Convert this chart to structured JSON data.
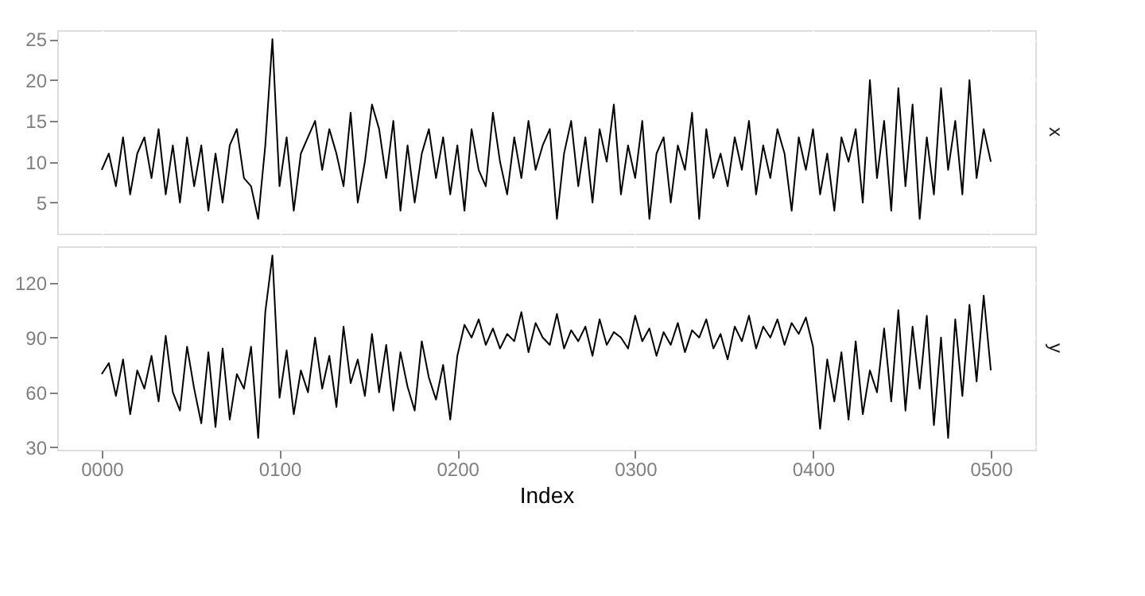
{
  "chart_data": [
    {
      "type": "line",
      "title": "x",
      "tick_labels": "y",
      "grid": true,
      "marker": "none",
      "line_style": "solid",
      "legend": false,
      "xlim": [
        -25,
        525
      ],
      "xticks": [
        0,
        100,
        200,
        300,
        400,
        500
      ],
      "ylim": [
        1.2,
        26.1
      ],
      "yticks": [
        5,
        10,
        15,
        20,
        25
      ],
      "x": [
        0,
        4,
        8,
        12,
        16,
        20,
        24,
        28,
        32,
        36,
        40,
        44,
        48,
        52,
        56,
        60,
        64,
        68,
        72,
        76,
        80,
        84,
        88,
        92,
        96,
        100,
        104,
        108,
        112,
        116,
        120,
        124,
        128,
        132,
        136,
        140,
        144,
        148,
        152,
        156,
        160,
        164,
        168,
        172,
        176,
        180,
        184,
        188,
        192,
        196,
        200,
        204,
        208,
        212,
        216,
        220,
        224,
        228,
        232,
        236,
        240,
        244,
        248,
        252,
        256,
        260,
        264,
        268,
        272,
        276,
        280,
        284,
        288,
        292,
        296,
        300,
        304,
        308,
        312,
        316,
        320,
        324,
        328,
        332,
        336,
        340,
        344,
        348,
        352,
        356,
        360,
        364,
        368,
        372,
        376,
        380,
        384,
        388,
        392,
        396,
        400,
        404,
        408,
        412,
        416,
        420,
        424,
        428,
        432,
        436,
        440,
        444,
        448,
        452,
        456,
        460,
        464,
        468,
        472,
        476,
        480,
        484,
        488,
        492,
        496,
        500
      ],
      "series": [
        {
          "color": "#000000",
          "values": [
            9,
            11,
            7,
            13,
            6,
            11,
            13,
            8,
            14,
            6,
            12,
            5,
            13,
            7,
            12,
            4,
            11,
            5,
            12,
            14,
            8,
            7,
            3,
            12,
            25,
            7,
            13,
            4,
            11,
            13,
            15,
            9,
            14,
            11,
            7,
            16,
            5,
            10,
            17,
            14,
            8,
            15,
            4,
            12,
            5,
            11,
            14,
            8,
            13,
            6,
            12,
            4,
            14,
            9,
            7,
            16,
            10,
            6,
            13,
            8,
            15,
            9,
            12,
            14,
            3,
            11,
            15,
            7,
            13,
            5,
            14,
            10,
            17,
            6,
            12,
            8,
            15,
            3,
            11,
            13,
            5,
            12,
            9,
            16,
            3,
            14,
            8,
            11,
            7,
            13,
            9,
            15,
            6,
            12,
            8,
            14,
            11,
            4,
            13,
            9,
            14,
            6,
            11,
            4,
            13,
            10,
            14,
            5,
            20,
            8,
            15,
            4,
            19,
            7,
            17,
            3,
            13,
            6,
            19,
            9,
            15,
            6,
            20,
            8,
            14,
            10
          ]
        }
      ]
    },
    {
      "type": "line",
      "title": "y",
      "xlabel": "Index",
      "grid": true,
      "marker": "none",
      "line_style": "solid",
      "legend": false,
      "xlim": [
        -25,
        525
      ],
      "xticks": [
        {
          "value": 0,
          "label": "0000"
        },
        {
          "value": 100,
          "label": "0100"
        },
        {
          "value": 200,
          "label": "0200"
        },
        {
          "value": 300,
          "label": "0300"
        },
        {
          "value": 400,
          "label": "0400"
        },
        {
          "value": 500,
          "label": "0500"
        }
      ],
      "ylim": [
        28.5,
        140
      ],
      "yticks": [
        30,
        60,
        90,
        120
      ],
      "x": [
        0,
        4,
        8,
        12,
        16,
        20,
        24,
        28,
        32,
        36,
        40,
        44,
        48,
        52,
        56,
        60,
        64,
        68,
        72,
        76,
        80,
        84,
        88,
        92,
        96,
        100,
        104,
        108,
        112,
        116,
        120,
        124,
        128,
        132,
        136,
        140,
        144,
        148,
        152,
        156,
        160,
        164,
        168,
        172,
        176,
        180,
        184,
        188,
        192,
        196,
        200,
        204,
        208,
        212,
        216,
        220,
        224,
        228,
        232,
        236,
        240,
        244,
        248,
        252,
        256,
        260,
        264,
        268,
        272,
        276,
        280,
        284,
        288,
        292,
        296,
        300,
        304,
        308,
        312,
        316,
        320,
        324,
        328,
        332,
        336,
        340,
        344,
        348,
        352,
        356,
        360,
        364,
        368,
        372,
        376,
        380,
        384,
        388,
        392,
        396,
        400,
        404,
        408,
        412,
        416,
        420,
        424,
        428,
        432,
        436,
        440,
        444,
        448,
        452,
        456,
        460,
        464,
        468,
        472,
        476,
        480,
        484,
        488,
        492,
        496,
        500
      ],
      "series": [
        {
          "color": "#000000",
          "values": [
            70,
            76,
            58,
            78,
            48,
            72,
            62,
            80,
            55,
            91,
            60,
            50,
            85,
            62,
            43,
            82,
            41,
            84,
            45,
            70,
            62,
            85,
            35,
            104,
            135,
            57,
            83,
            48,
            72,
            60,
            90,
            62,
            80,
            52,
            96,
            65,
            78,
            58,
            92,
            60,
            86,
            50,
            82,
            63,
            50,
            88,
            68,
            56,
            75,
            45,
            80,
            97,
            90,
            100,
            86,
            95,
            84,
            92,
            88,
            104,
            82,
            98,
            90,
            86,
            103,
            84,
            94,
            88,
            96,
            80,
            100,
            86,
            93,
            90,
            84,
            102,
            88,
            95,
            80,
            93,
            86,
            98,
            82,
            94,
            90,
            100,
            84,
            92,
            78,
            96,
            88,
            102,
            84,
            96,
            90,
            100,
            86,
            98,
            92,
            101,
            85,
            40,
            78,
            55,
            82,
            45,
            88,
            48,
            72,
            60,
            95,
            55,
            105,
            50,
            96,
            62,
            102,
            42,
            90,
            35,
            100,
            58,
            108,
            66,
            113,
            72
          ]
        }
      ]
    }
  ]
}
